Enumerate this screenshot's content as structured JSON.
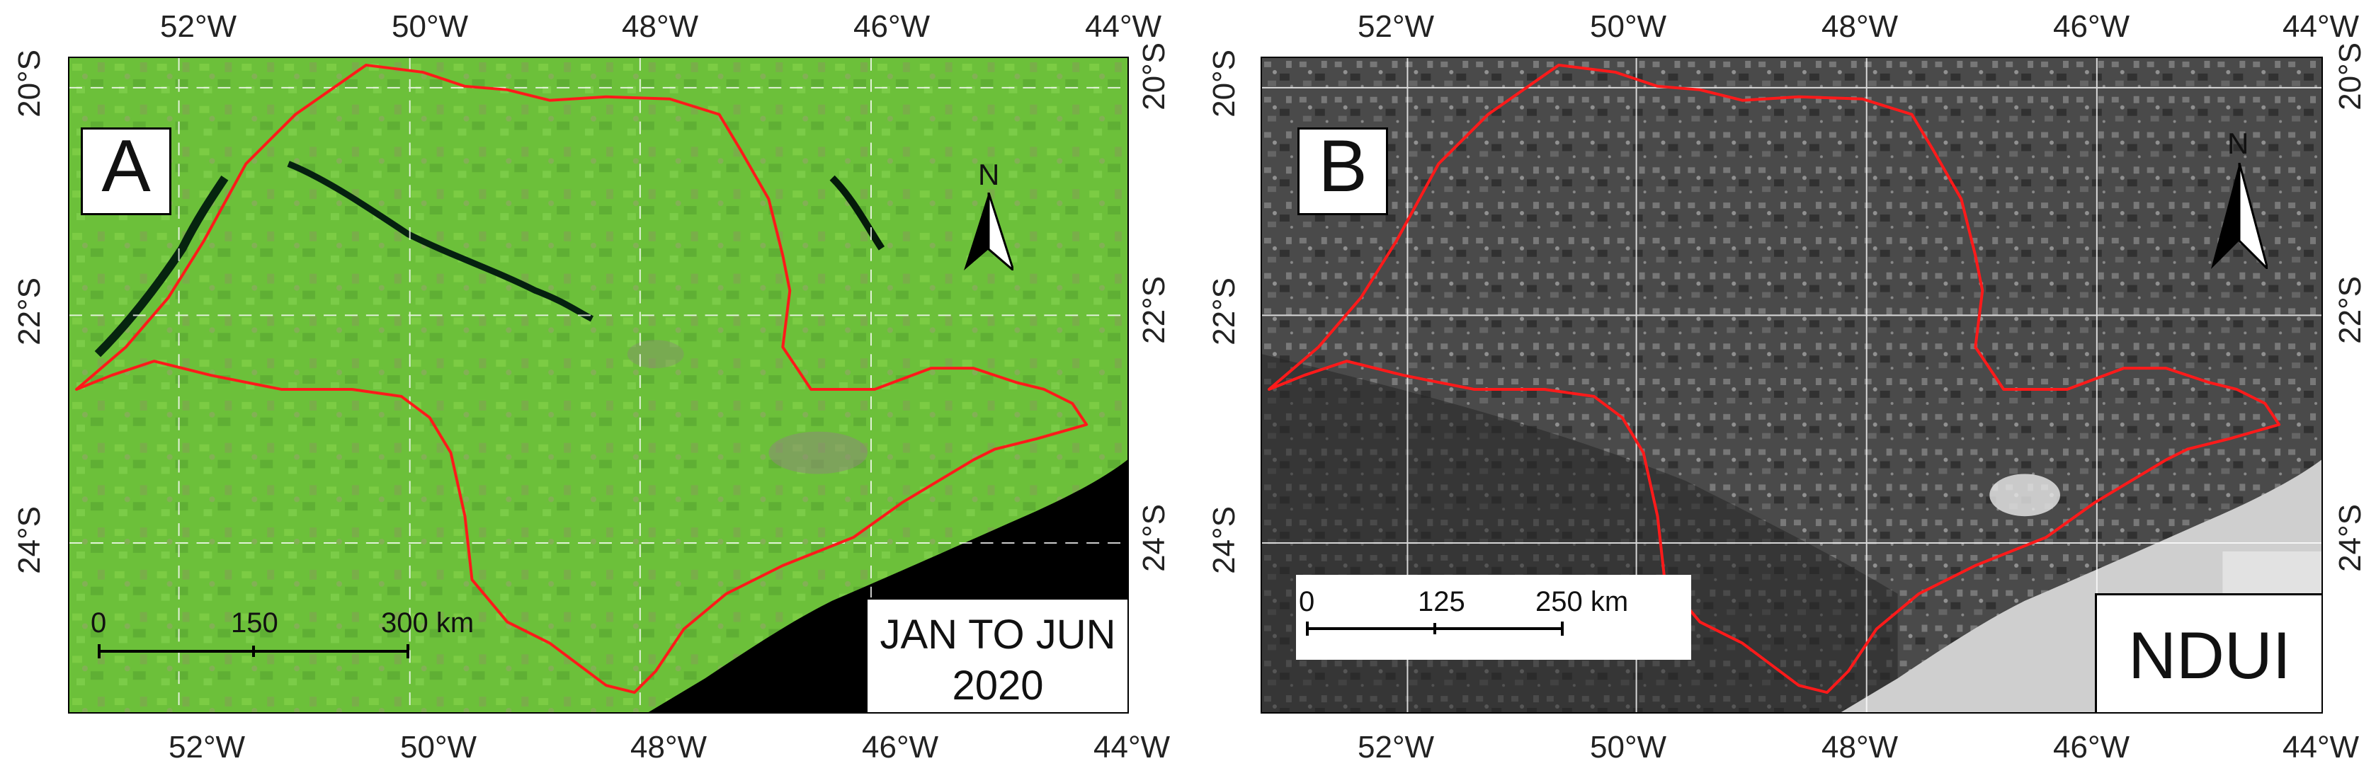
{
  "panel_a": {
    "label": "A",
    "date_line1": "JAN TO JUN",
    "date_line2": "2020",
    "north": "N",
    "scale": [
      "0",
      "150",
      "300 km"
    ],
    "colors": {
      "vegetation": "#6ec43a",
      "water": "#000000",
      "boundary": "#ff1a1a",
      "grid": "#ffffff"
    }
  },
  "panel_b": {
    "label": "B",
    "index_name": "NDUI",
    "north": "N",
    "scale": [
      "0",
      "125",
      "250 km"
    ],
    "colors": {
      "background": "#3c3c3c",
      "water": "#000000",
      "boundary": "#ff1a1a",
      "grid": "#ffffff"
    }
  },
  "lon_ticks": [
    "52°W",
    "50°W",
    "48°W",
    "46°W",
    "44°W"
  ],
  "lat_ticks": [
    "20°S",
    "22°S",
    "24°S"
  ]
}
